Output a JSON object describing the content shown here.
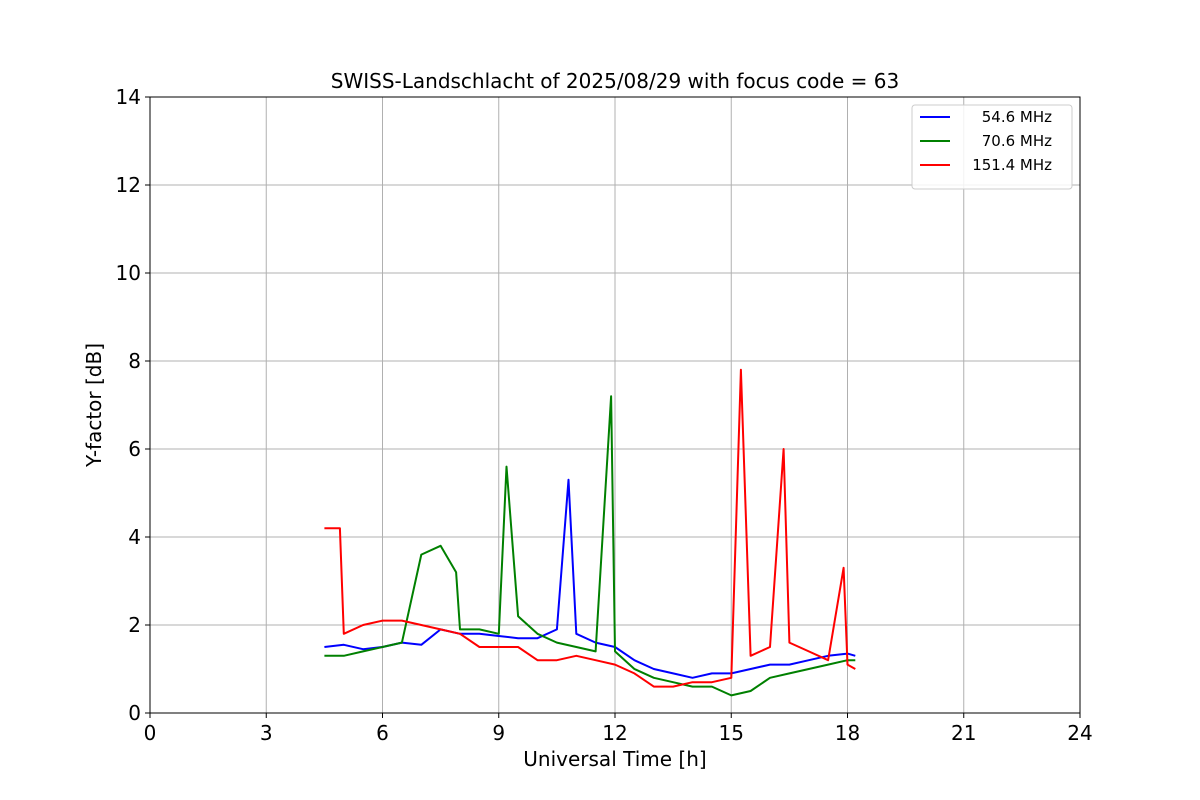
{
  "chart_data": {
    "type": "line",
    "title": "SWISS-Landschlacht of 2025/08/29 with focus code = 63",
    "xlabel": "Universal Time [h]",
    "ylabel": "Y-factor [dB]",
    "xlim": [
      0,
      24
    ],
    "ylim": [
      0,
      14
    ],
    "xticks": [
      0,
      3,
      6,
      9,
      12,
      15,
      18,
      21,
      24
    ],
    "yticks": [
      0,
      2,
      4,
      6,
      8,
      10,
      12,
      14
    ],
    "grid": true,
    "legend_position": "top-right",
    "series": [
      {
        "name": "54.6 MHz",
        "color": "#0000ff",
        "x": [
          4.5,
          5.0,
          5.5,
          6.0,
          6.5,
          7.0,
          7.5,
          8.0,
          8.5,
          9.0,
          9.5,
          10.0,
          10.5,
          10.8,
          11.0,
          11.5,
          12.0,
          12.5,
          13.0,
          13.5,
          14.0,
          14.5,
          15.0,
          15.5,
          16.0,
          16.5,
          17.0,
          17.5,
          18.0,
          18.2
        ],
        "y": [
          1.5,
          1.55,
          1.45,
          1.5,
          1.6,
          1.55,
          1.9,
          1.8,
          1.8,
          1.75,
          1.7,
          1.7,
          1.9,
          5.3,
          1.8,
          1.6,
          1.5,
          1.2,
          1.0,
          0.9,
          0.8,
          0.9,
          0.9,
          1.0,
          1.1,
          1.1,
          1.2,
          1.3,
          1.35,
          1.3
        ]
      },
      {
        "name": "70.6 MHz",
        "color": "#008000",
        "x": [
          4.5,
          5.0,
          5.5,
          6.0,
          6.5,
          7.0,
          7.5,
          7.9,
          8.0,
          8.5,
          9.0,
          9.2,
          9.5,
          10.0,
          10.5,
          11.0,
          11.5,
          11.9,
          12.0,
          12.5,
          13.0,
          13.5,
          14.0,
          14.5,
          15.0,
          15.5,
          16.0,
          16.5,
          17.0,
          17.5,
          18.0,
          18.2
        ],
        "y": [
          1.3,
          1.3,
          1.4,
          1.5,
          1.6,
          3.6,
          3.8,
          3.2,
          1.9,
          1.9,
          1.8,
          5.6,
          2.2,
          1.8,
          1.6,
          1.5,
          1.4,
          7.2,
          1.4,
          1.0,
          0.8,
          0.7,
          0.6,
          0.6,
          0.4,
          0.5,
          0.8,
          0.9,
          1.0,
          1.1,
          1.2,
          1.2
        ]
      },
      {
        "name": "151.4 MHz",
        "color": "#ff0000",
        "x": [
          4.5,
          4.9,
          5.0,
          5.5,
          6.0,
          6.5,
          7.0,
          7.5,
          8.0,
          8.5,
          9.0,
          9.5,
          10.0,
          10.5,
          11.0,
          11.5,
          12.0,
          12.5,
          13.0,
          13.5,
          14.0,
          14.5,
          15.0,
          15.25,
          15.5,
          16.0,
          16.35,
          16.5,
          17.0,
          17.5,
          17.9,
          18.0,
          18.2
        ],
        "y": [
          4.2,
          4.2,
          1.8,
          2.0,
          2.1,
          2.1,
          2.0,
          1.9,
          1.8,
          1.5,
          1.5,
          1.5,
          1.2,
          1.2,
          1.3,
          1.2,
          1.1,
          0.9,
          0.6,
          0.6,
          0.7,
          0.7,
          0.8,
          7.8,
          1.3,
          1.5,
          6.0,
          1.6,
          1.4,
          1.2,
          3.3,
          1.1,
          1.0
        ]
      }
    ]
  }
}
